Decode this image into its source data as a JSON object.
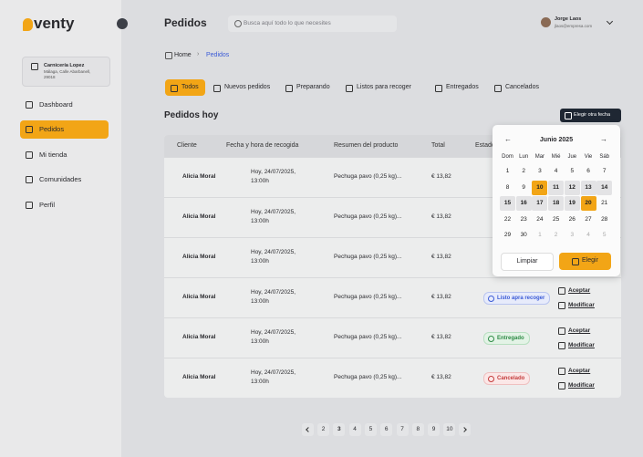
{
  "brand": "venty",
  "store": {
    "name": "Carnicería Lopez",
    "address": "Málaga, Calle Abarbanell, 29018"
  },
  "nav": [
    {
      "label": "Dashboard"
    },
    {
      "label": "Pedidos",
      "active": true
    },
    {
      "label": "Mi tienda"
    },
    {
      "label": "Comunidades"
    },
    {
      "label": "Perfil"
    }
  ],
  "header": {
    "title": "Pedidos",
    "search_placeholder": "Busca aquí todo lo que necesites",
    "user": {
      "name": "Jorge Laos",
      "email": "jlaos@empresa.com"
    }
  },
  "breadcrumb": [
    "Home",
    "Pedidos"
  ],
  "tabs": [
    {
      "label": "Todos",
      "active": true
    },
    {
      "label": "Nuevos pedidos"
    },
    {
      "label": "Preparando"
    },
    {
      "label": "Listos para recoger"
    },
    {
      "label": "Entregados"
    },
    {
      "label": "Cancelados"
    }
  ],
  "section": {
    "title": "Pedidos hoy",
    "date_button": "Elegir otra fecha"
  },
  "table": {
    "columns": [
      "Cliente",
      "Fecha y hora de recogida",
      "Resumen del producto",
      "Total",
      "Estado"
    ],
    "rows": [
      {
        "client": "Alicia Moral",
        "date": "Hoy, 24/07/2025, 13:00h",
        "summary": "Pechuga pavo (0,25 kg)...",
        "total": "€ 13,82"
      },
      {
        "client": "Alicia Moral",
        "date": "Hoy, 24/07/2025, 13:00h",
        "summary": "Pechuga pavo (0,25 kg)...",
        "total": "€ 13,82"
      },
      {
        "client": "Alicia Moral",
        "date": "Hoy, 24/07/2025, 13:00h",
        "summary": "Pechuga pavo (0,25 kg)...",
        "total": "€ 13,82"
      },
      {
        "client": "Alicia Moral",
        "date": "Hoy, 24/07/2025, 13:00h",
        "summary": "Pechuga pavo (0,25 kg)...",
        "total": "€ 13,82",
        "status": "Listo apra recoger",
        "status_kind": "ready",
        "actions": [
          "Aceptar",
          "Modificar"
        ]
      },
      {
        "client": "Alicia Moral",
        "date": "Hoy, 24/07/2025, 13:00h",
        "summary": "Pechuga pavo (0,25 kg)...",
        "total": "€ 13,82",
        "status": "Entregado",
        "status_kind": "delivered",
        "actions": [
          "Aceptar",
          "Modificar"
        ]
      },
      {
        "client": "Alicia Moral",
        "date": "Hoy, 24/07/2025, 13:00h",
        "summary": "Pechuga pavo (0,25 kg)...",
        "total": "€ 13,82",
        "status": "Cancelado",
        "status_kind": "cancelled",
        "actions": [
          "Aceptar",
          "Modificar"
        ]
      }
    ]
  },
  "calendar": {
    "month": "Junio 2025",
    "weekdays": [
      "Dom",
      "Lun",
      "Mar",
      "Mié",
      "Jue",
      "Vie",
      "Sáb"
    ],
    "days": [
      1,
      2,
      3,
      4,
      5,
      6,
      7,
      8,
      9,
      10,
      11,
      12,
      13,
      14,
      15,
      16,
      17,
      18,
      19,
      20,
      21,
      22,
      23,
      24,
      25,
      26,
      27,
      28,
      29,
      30
    ],
    "next_month_days": [
      1,
      2,
      3,
      4,
      5
    ],
    "range": [
      10,
      20
    ],
    "clear": "Limpiar",
    "apply": "Elegir"
  },
  "pagination": {
    "pages": [
      2,
      3,
      4,
      5,
      6,
      7,
      8,
      9,
      10
    ],
    "current": 3
  }
}
